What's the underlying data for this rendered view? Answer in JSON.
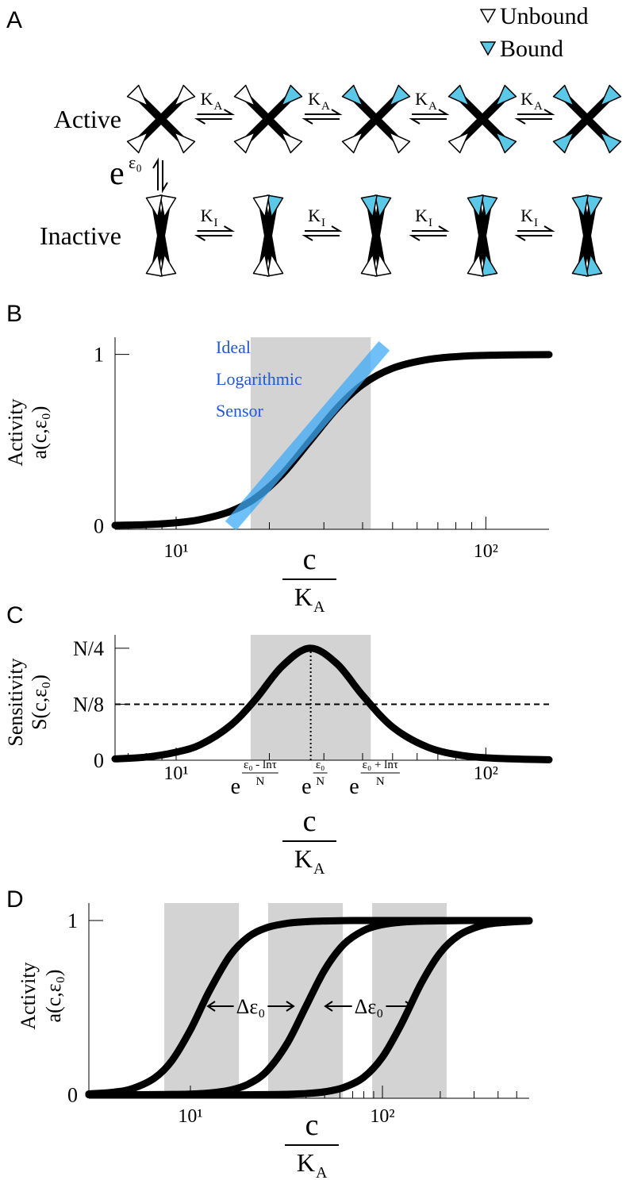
{
  "panel_a": {
    "label": "A",
    "legend": [
      {
        "name": "Unbound",
        "color": "#ffffff"
      },
      {
        "name": "Bound",
        "color": "#5bc8e8"
      }
    ],
    "rows": [
      {
        "label": "Active",
        "rates": [
          {
            "symbol": "K",
            "sub": "A"
          },
          {
            "symbol": "K",
            "sub": "A"
          },
          {
            "symbol": "K",
            "sub": "A"
          },
          {
            "symbol": "K",
            "sub": "A"
          }
        ]
      },
      {
        "label": "Inactive",
        "rates": [
          {
            "symbol": "K",
            "sub": "I"
          },
          {
            "symbol": "K",
            "sub": "I"
          },
          {
            "symbol": "K",
            "sub": "I"
          },
          {
            "symbol": "K",
            "sub": "I"
          }
        ]
      }
    ],
    "coupling": {
      "base": "e",
      "exponent": "ε₀"
    }
  },
  "chart_data": [
    {
      "panel": "B",
      "type": "line",
      "ylabel": [
        "Activity",
        "a(c,ε₀)"
      ],
      "xlabel": {
        "numerator": "c",
        "denominator": "K",
        "sub": "A"
      },
      "xscale": "log",
      "xlim": [
        6.35,
        160
      ],
      "ylim": [
        -0.02,
        1.1
      ],
      "xticks": [
        {
          "value": 10,
          "label": "10¹"
        },
        {
          "value": 100,
          "label": "10²"
        }
      ],
      "xminorticks": [
        7,
        8,
        9,
        20,
        30,
        40,
        50,
        60,
        70,
        80,
        90
      ],
      "yticks": [
        0,
        1
      ],
      "shaded": [
        [
          17.4,
          42.5
        ]
      ],
      "shade_color": "#d3d3d3",
      "series": [
        {
          "color": "#000000",
          "x": [
            6.35,
            8,
            10,
            12,
            15,
            18,
            22,
            27,
            33,
            40,
            50,
            65,
            85,
            110,
            160
          ],
          "values": [
            0.003,
            0.007,
            0.018,
            0.037,
            0.085,
            0.161,
            0.3,
            0.493,
            0.684,
            0.824,
            0.919,
            0.97,
            0.99,
            0.996,
            0.999
          ]
        },
        {
          "name": "Ideal Logarithmic Sensor",
          "color": "#3fa9f5",
          "label_color": "#2255dd",
          "x": [
            15,
            47
          ],
          "values": [
            0,
            1.05
          ]
        }
      ]
    },
    {
      "panel": "C",
      "type": "line",
      "ylabel": [
        "Sensitivity",
        "S(c,ε₀)"
      ],
      "xlabel": {
        "numerator": "c",
        "denominator": "K",
        "sub": "A"
      },
      "xscale": "log",
      "xlim": [
        6.35,
        160
      ],
      "ylim": [
        0,
        0.28
      ],
      "xticks": [
        {
          "value": 10,
          "label": "10¹"
        },
        {
          "value": 100,
          "label": "10²"
        }
      ],
      "xminorticks": [
        7,
        8,
        9,
        20,
        30,
        40,
        50,
        60,
        70,
        80,
        90
      ],
      "yticks": [
        0,
        {
          "value": 0.125,
          "label": "N/8"
        },
        {
          "value": 0.25,
          "label": "N/4"
        }
      ],
      "shaded": [
        [
          17.4,
          42.5
        ]
      ],
      "shade_color": "#d3d3d3",
      "hlines": [
        {
          "y": 0.125,
          "style": "dashed"
        }
      ],
      "vlines": [
        {
          "x": 27.2,
          "y": [
            0,
            0.25
          ],
          "style": "dotted"
        }
      ],
      "annotations": [
        {
          "x": 17.4,
          "base": "e",
          "numerator": "ε₀ - lnτ",
          "denominator": "N"
        },
        {
          "x": 27.2,
          "base": "e",
          "numerator": "ε₀",
          "denominator": "N"
        },
        {
          "x": 42.5,
          "base": "e",
          "numerator": "ε₀ + lnτ",
          "denominator": "N"
        }
      ],
      "series": [
        {
          "color": "#000000",
          "x": [
            6.35,
            8,
            10,
            12,
            15,
            18,
            22,
            27,
            33,
            40,
            50,
            65,
            85,
            110,
            160
          ],
          "values": [
            0.003,
            0.007,
            0.018,
            0.035,
            0.078,
            0.135,
            0.21,
            0.25,
            0.216,
            0.145,
            0.074,
            0.029,
            0.01,
            0.004,
            0.001
          ]
        }
      ]
    },
    {
      "panel": "D",
      "type": "line",
      "ylabel": [
        "Activity",
        "a(c,ε₀)"
      ],
      "xlabel": {
        "numerator": "c",
        "denominator": "K",
        "sub": "A"
      },
      "xscale": "log",
      "xlim": [
        2.96,
        581
      ],
      "ylim": [
        -0.02,
        1.1
      ],
      "xticks": [
        {
          "value": 10,
          "label": "10¹"
        },
        {
          "value": 100,
          "label": "10²"
        }
      ],
      "xminorticks": [
        4,
        5,
        6,
        7,
        8,
        9,
        20,
        30,
        40,
        50,
        60,
        70,
        80,
        90,
        200,
        300,
        400,
        500
      ],
      "yticks": [
        0,
        1
      ],
      "shaded": [
        [
          7.31,
          17.9
        ],
        [
          25.4,
          62.2
        ],
        [
          88.4,
          216
        ]
      ],
      "shade_color": "#d3d3d3",
      "annotations": [
        {
          "text": "Δε₀"
        },
        {
          "text": "Δε₀"
        }
      ],
      "series": [
        {
          "color": "#000000",
          "x": [
            2.96,
            4,
            5,
            6.5,
            8,
            10,
            12.5,
            16,
            20,
            25,
            32,
            40,
            50,
            63,
            80,
            100,
            125,
            160,
            200,
            250,
            320,
            400,
            581
          ],
          "values": [
            0.005,
            0.015,
            0.036,
            0.096,
            0.195,
            0.372,
            0.591,
            0.795,
            0.905,
            0.959,
            0.984,
            0.993,
            0.997,
            0.999,
            1,
            1,
            1,
            1,
            1,
            1,
            1,
            1,
            1
          ]
        },
        {
          "color": "#000000",
          "x": [
            2.96,
            4,
            5,
            6.5,
            8,
            10,
            12.5,
            16,
            20,
            25,
            32,
            40,
            50,
            63,
            80,
            100,
            125,
            160,
            200,
            250,
            320,
            400,
            581
          ],
          "values": [
            0,
            0,
            0,
            0.001,
            0.002,
            0.004,
            0.01,
            0.026,
            0.061,
            0.136,
            0.297,
            0.508,
            0.716,
            0.864,
            0.943,
            0.976,
            0.99,
            0.996,
            0.998,
            0.999,
            1,
            1,
            1
          ]
        },
        {
          "color": "#000000",
          "x": [
            2.96,
            4,
            5,
            6.5,
            8,
            10,
            12.5,
            16,
            20,
            25,
            32,
            40,
            50,
            63,
            80,
            100,
            125,
            160,
            200,
            250,
            320,
            400,
            581
          ],
          "values": [
            0,
            0,
            0,
            0,
            0,
            0,
            0,
            0,
            0,
            0.001,
            0.003,
            0.007,
            0.017,
            0.042,
            0.101,
            0.216,
            0.402,
            0.644,
            0.815,
            0.915,
            0.967,
            0.986,
            0.997
          ]
        }
      ]
    }
  ]
}
